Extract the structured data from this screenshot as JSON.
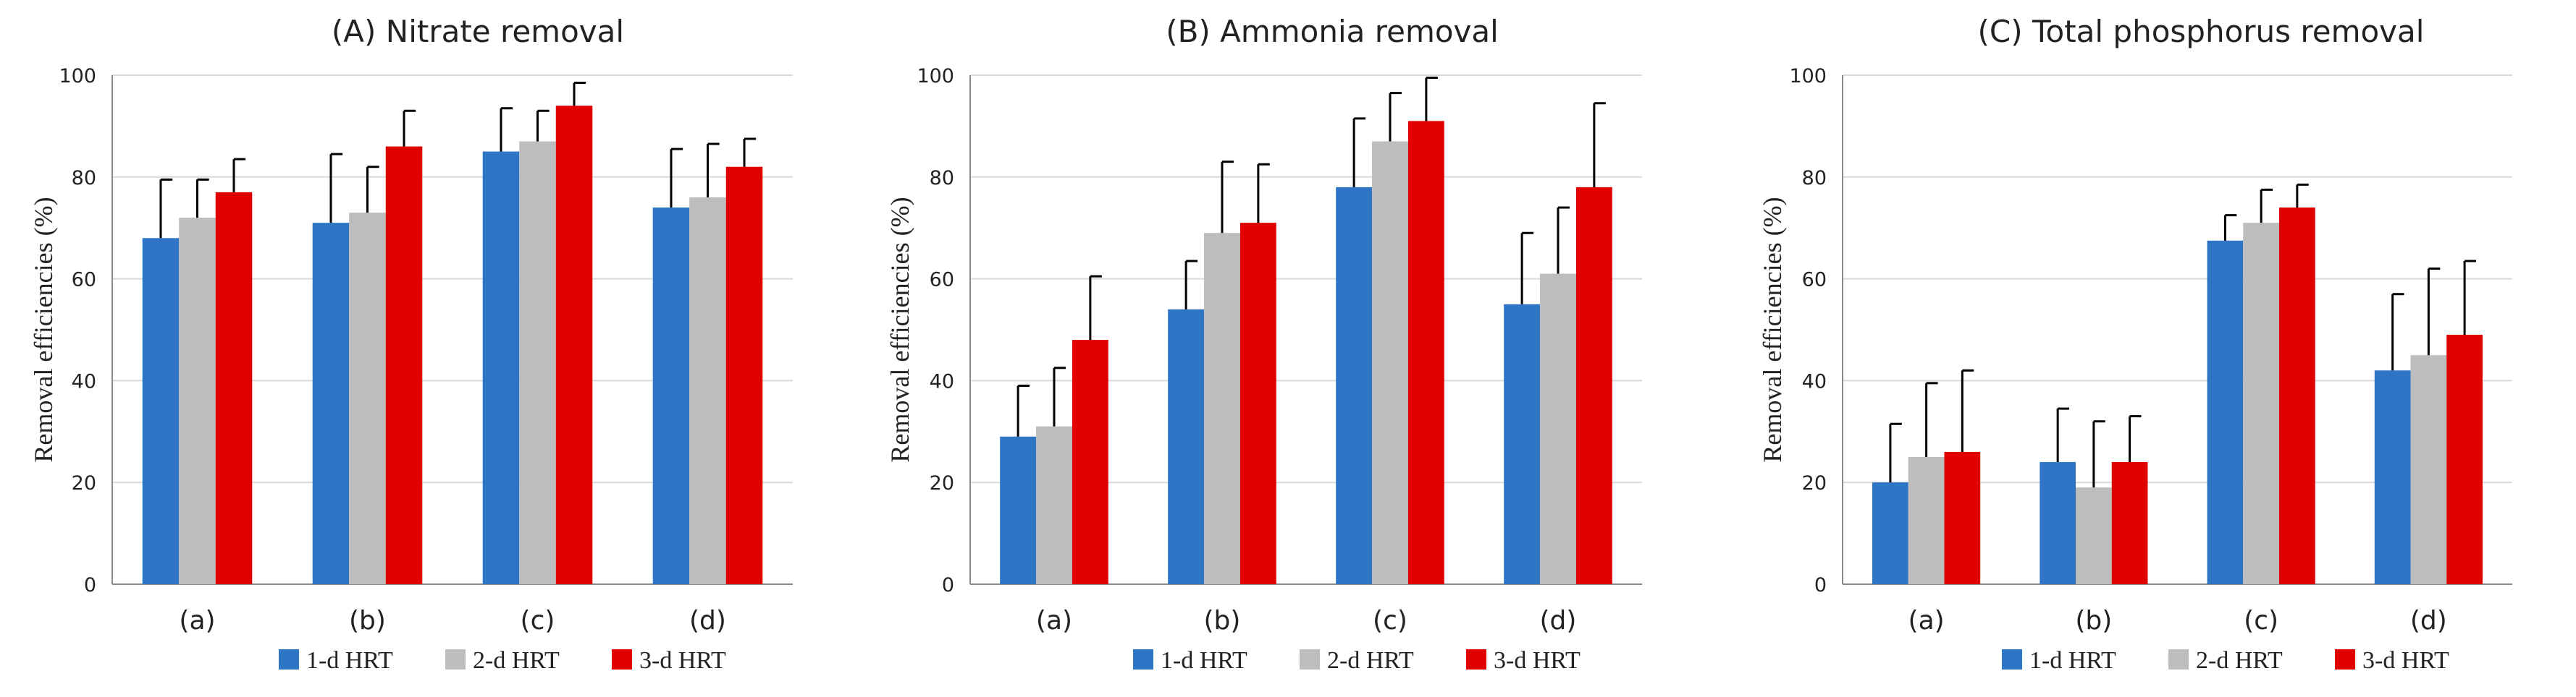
{
  "colors": {
    "series1": "#2E75C6",
    "series2": "#BDBDBD",
    "series3": "#E00000",
    "axis": "#888888",
    "grid": "#D9D9D9"
  },
  "chart_data": [
    {
      "type": "bar",
      "title": "(A)  Nitrate removal",
      "ylabel": "Removal efficiencies (%)",
      "xlabel": "",
      "ylim": [
        0,
        100
      ],
      "yticks": [
        "0",
        "20",
        "40",
        "60",
        "80",
        "100"
      ],
      "grid": true,
      "legend": "bottom",
      "categories": [
        "(a)",
        "(b)",
        "(c)",
        "(d)"
      ],
      "series": [
        {
          "name": "1-d HRT",
          "values": [
            68,
            71,
            85,
            74
          ],
          "errors": [
            11.5,
            13.5,
            8.5,
            11.5
          ]
        },
        {
          "name": "2-d HRT",
          "values": [
            72,
            73,
            87,
            76
          ],
          "errors": [
            7.5,
            9,
            6,
            10.5
          ]
        },
        {
          "name": "3-d HRT",
          "values": [
            77,
            86,
            94,
            82
          ],
          "errors": [
            6.5,
            7,
            4.5,
            5.5
          ]
        }
      ]
    },
    {
      "type": "bar",
      "title": "(B)  Ammonia  removal",
      "ylabel": "Removal efficiencies (%)",
      "xlabel": "",
      "ylim": [
        0,
        100
      ],
      "yticks": [
        "0",
        "20",
        "40",
        "60",
        "80",
        "100"
      ],
      "grid": true,
      "legend": "bottom",
      "categories": [
        "(a)",
        "(b)",
        "(c)",
        "(d)"
      ],
      "series": [
        {
          "name": "1-d HRT",
          "values": [
            29,
            54,
            78,
            55
          ],
          "errors": [
            10,
            9.5,
            13.5,
            14
          ]
        },
        {
          "name": "2-d HRT",
          "values": [
            31,
            69,
            87,
            61
          ],
          "errors": [
            11.5,
            14,
            9.5,
            13
          ]
        },
        {
          "name": "3-d HRT",
          "values": [
            48,
            71,
            91,
            78
          ],
          "errors": [
            12.5,
            11.5,
            8.5,
            16.5
          ]
        }
      ]
    },
    {
      "type": "bar",
      "title": "(C)  Total phosphorus removal",
      "ylabel": "Removal efficiencies (%)",
      "xlabel": "",
      "ylim": [
        0,
        100
      ],
      "yticks": [
        "0",
        "20",
        "40",
        "60",
        "80",
        "100"
      ],
      "grid": true,
      "legend": "bottom",
      "categories": [
        "(a)",
        "(b)",
        "(c)",
        "(d)"
      ],
      "series": [
        {
          "name": "1-d HRT",
          "values": [
            20,
            24,
            67.5,
            42
          ],
          "errors": [
            11.5,
            10.5,
            5,
            15
          ]
        },
        {
          "name": "2-d HRT",
          "values": [
            25,
            19,
            71,
            45
          ],
          "errors": [
            14.5,
            13,
            6.5,
            17
          ]
        },
        {
          "name": "3-d HRT",
          "values": [
            26,
            24,
            74,
            49
          ],
          "errors": [
            16,
            9,
            4.5,
            14.5
          ]
        }
      ]
    }
  ]
}
